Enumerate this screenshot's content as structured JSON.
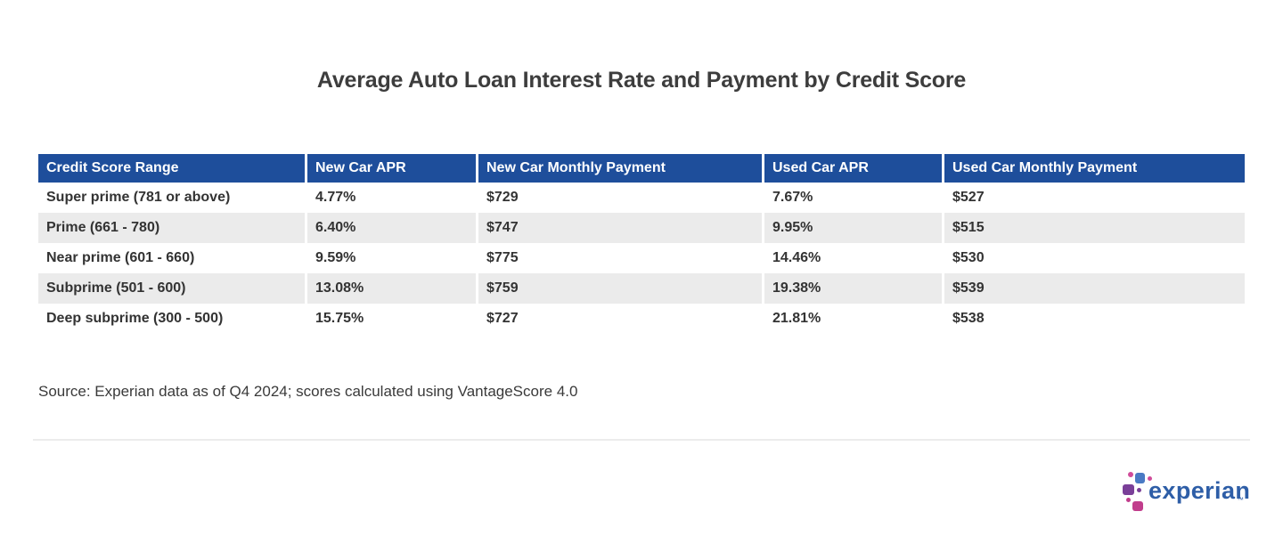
{
  "colors": {
    "header_bg": "#1e4e9b",
    "alt_row_bg": "#ebebeb",
    "body_text": "#333333",
    "title_text": "#3d3d3d",
    "logo_blue": "#2e5ea7",
    "logo_lightblue": "#4a7ac4",
    "logo_purple": "#7a3f98",
    "logo_magenta": "#c13d8c",
    "logo_pink": "#d04c9a",
    "divider": "#ececec"
  },
  "chart_data": {
    "type": "table",
    "title": "Average Auto Loan Interest Rate and Payment by Credit Score",
    "columns": [
      "Credit Score Range",
      "New Car APR",
      "New Car Monthly Payment",
      "Used Car APR",
      "Used Car Monthly Payment"
    ],
    "rows": [
      [
        "Super prime (781 or above)",
        "4.77%",
        "$729",
        "7.67%",
        "$527"
      ],
      [
        "Prime (661 - 780)",
        "6.40%",
        "$747",
        "9.95%",
        "$515"
      ],
      [
        "Near prime (601 - 660)",
        "9.59%",
        "$775",
        "14.46%",
        "$530"
      ],
      [
        "Subprime (501 - 600)",
        "13.08%",
        "$759",
        "19.38%",
        "$539"
      ],
      [
        "Deep subprime (300 - 500)",
        "15.75%",
        "$727",
        "21.81%",
        "$538"
      ]
    ],
    "source": "Source: Experian data as of Q4 2024; scores calculated using VantageScore 4.0",
    "layout": {
      "legend": "none",
      "grid": "alternating-row-shading",
      "header_text_color": "#ffffff"
    }
  },
  "logo": {
    "wordmark": "experian",
    "trademark": "™"
  }
}
